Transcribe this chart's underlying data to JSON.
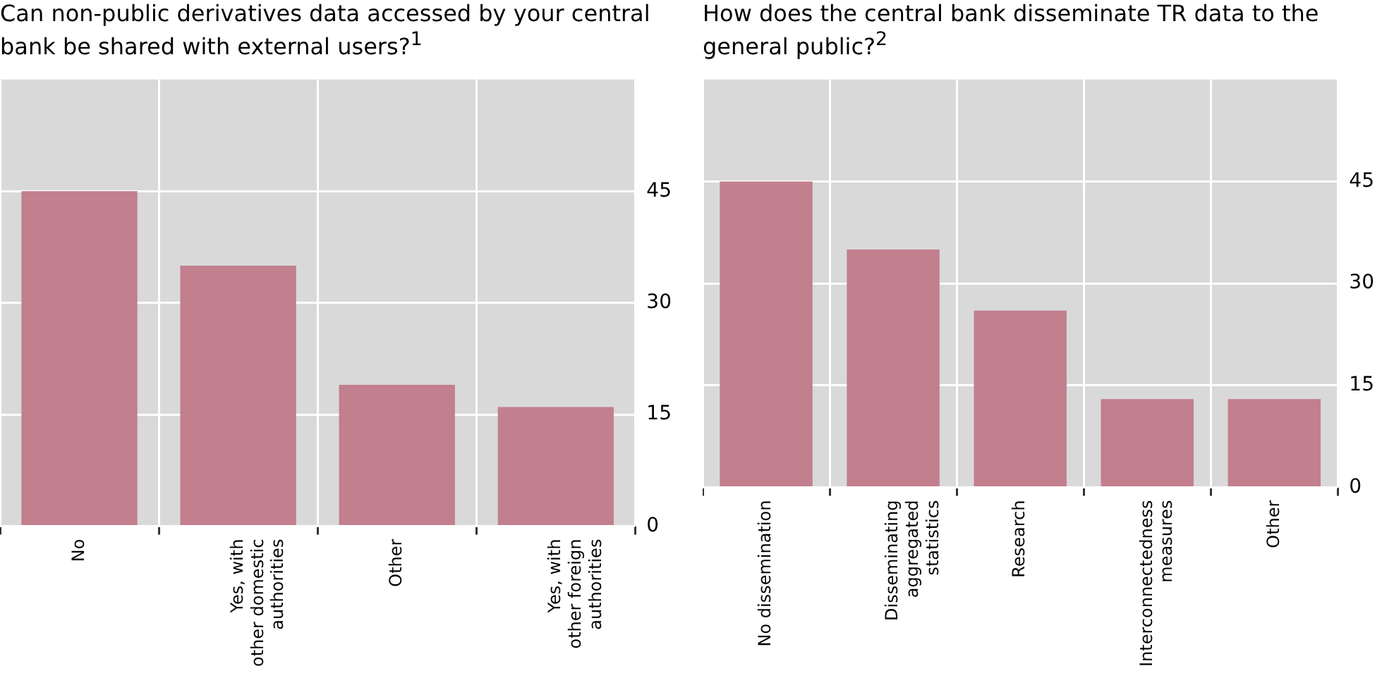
{
  "chart_data": [
    {
      "type": "bar",
      "title": "Can non-public derivatives data accessed by your central bank be shared with external users?$^{1}$",
      "categories": [
        "No",
        "Yes, with\nother domestic\nauthorities",
        "Other",
        "Yes, with\nother foreign\nauthorities"
      ],
      "values": [
        45,
        35,
        19,
        16
      ],
      "color": "#c27f8e",
      "ylim": [
        0,
        60
      ],
      "yticks": [
        0,
        15,
        30,
        45
      ],
      "grid": true
    },
    {
      "type": "bar",
      "title": "How does the central bank disseminate TR data to the general public?$^{2}$",
      "categories": [
        "No dissemination",
        "Disseminating\naggregated\nstatistics",
        "Research",
        "Interconnectedness\nmeasures",
        "Other"
      ],
      "values": [
        45,
        35,
        26,
        13,
        13
      ],
      "color": "#c27f8e",
      "ylim": [
        0,
        60
      ],
      "yticks": [
        0,
        15,
        30,
        45
      ],
      "grid": true
    }
  ]
}
